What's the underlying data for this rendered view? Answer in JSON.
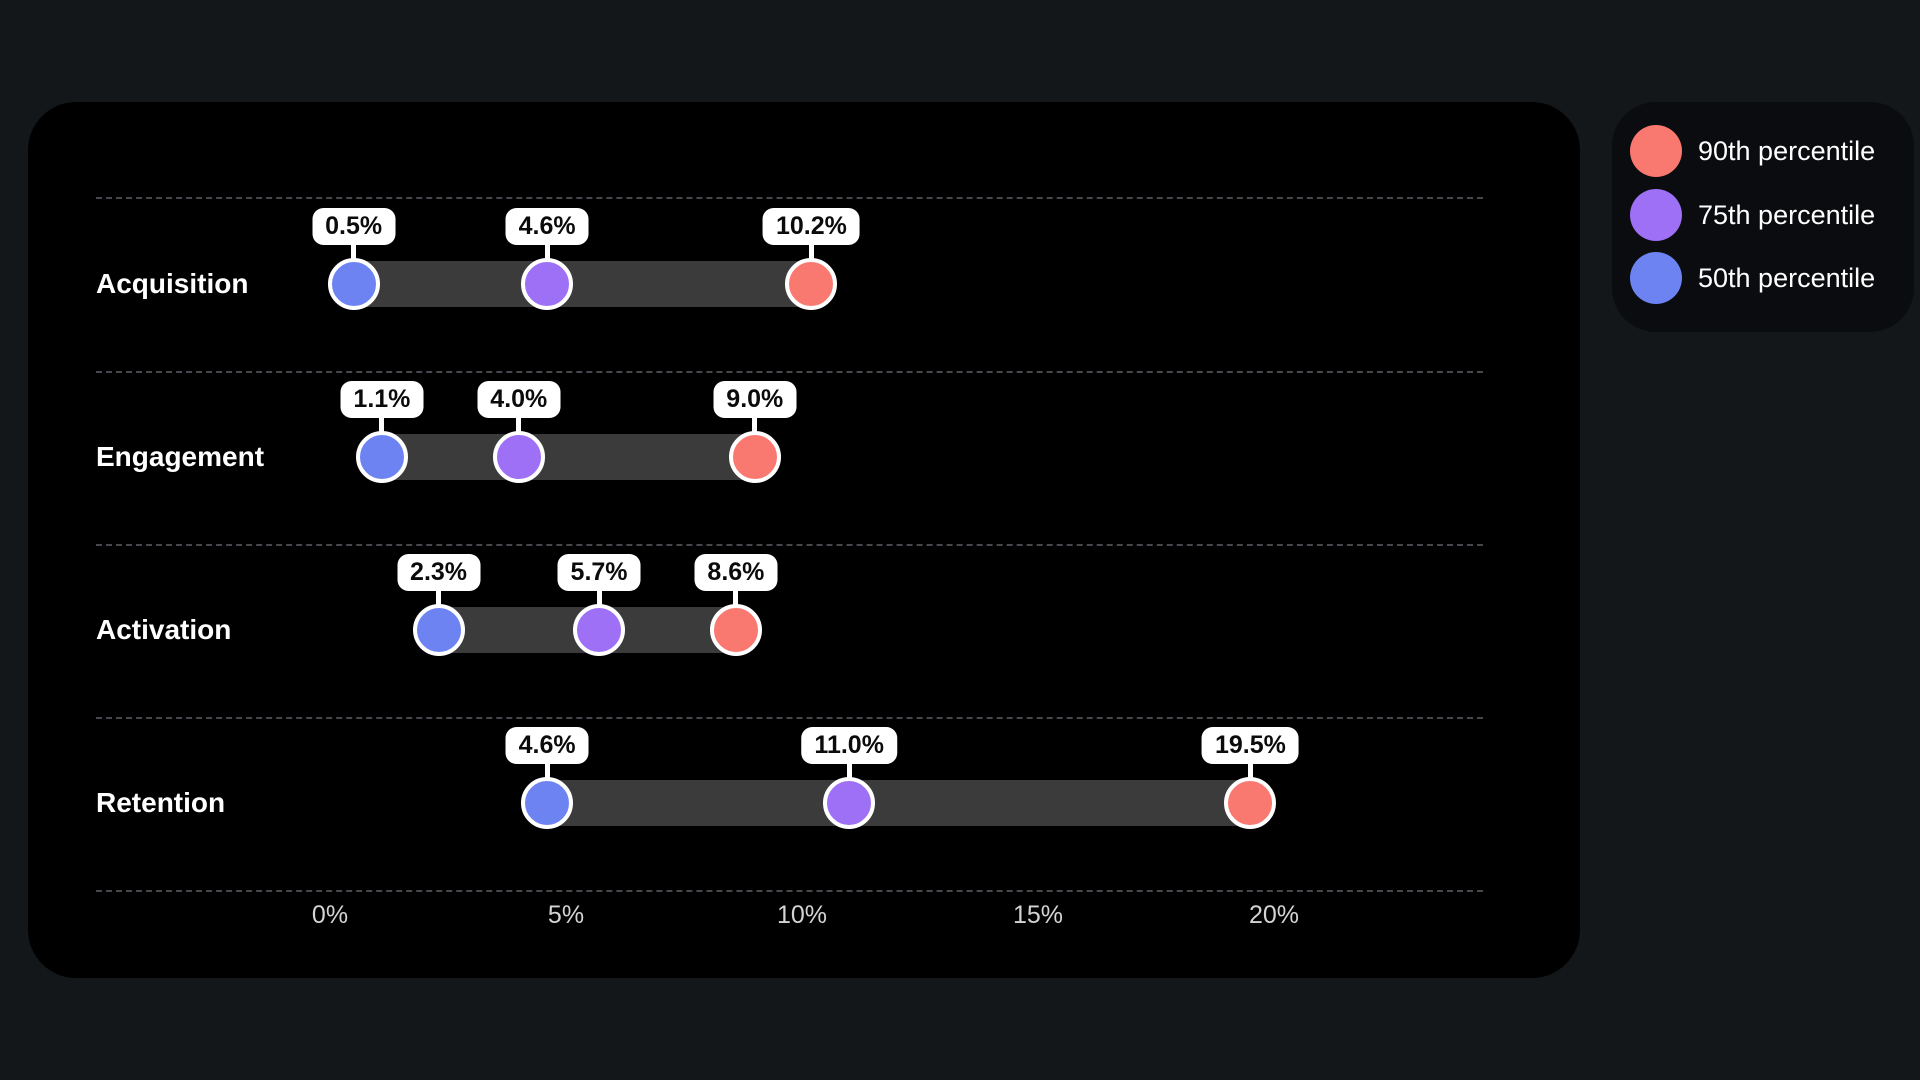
{
  "chart_data": {
    "type": "dumbbell",
    "title": "",
    "categories": [
      "Acquisition",
      "Engagement",
      "Activation",
      "Retention"
    ],
    "series": [
      {
        "name": "50th percentile",
        "color": "#6d83f2",
        "values": [
          0.5,
          1.1,
          2.3,
          4.6
        ],
        "labels": [
          "0.5%",
          "1.1%",
          "2.3%",
          "4.6%"
        ]
      },
      {
        "name": "75th percentile",
        "color": "#9d70f5",
        "values": [
          4.6,
          4.0,
          5.7,
          11.0
        ],
        "labels": [
          "4.6%",
          "4.0%",
          "5.7%",
          "11.0%"
        ]
      },
      {
        "name": "90th percentile",
        "color": "#f9786f",
        "values": [
          10.2,
          9.0,
          8.6,
          19.5
        ],
        "labels": [
          "10.2%",
          "9.0%",
          "8.6%",
          "19.5%"
        ]
      }
    ],
    "x_ticks": [
      {
        "value": 0,
        "label": "0%"
      },
      {
        "value": 5,
        "label": "5%"
      },
      {
        "value": 10,
        "label": "10%"
      },
      {
        "value": 15,
        "label": "15%"
      },
      {
        "value": 20,
        "label": "20%"
      }
    ],
    "xlim": [
      0,
      20
    ],
    "xlabel": "",
    "ylabel": "",
    "grid": "dashed-horizontal-row-separators",
    "legend_position": "top-right-outside"
  },
  "legend": {
    "items": [
      {
        "label": "90th percentile",
        "color": "#f9786f"
      },
      {
        "label": "75th percentile",
        "color": "#9d70f5"
      },
      {
        "label": "50th percentile",
        "color": "#6d83f2"
      }
    ]
  },
  "theme": {
    "page_bg": "#141719",
    "card_bg": "#000000",
    "legend_bg": "#0a0c0f",
    "range_bar_color": "#3b3b3b",
    "separator_color": "#45484c",
    "axis_label_color": "#d4d4d4",
    "badge_bg": "#ffffff",
    "badge_text": "#0b0b0b",
    "category_label_color": "#ffffff"
  }
}
